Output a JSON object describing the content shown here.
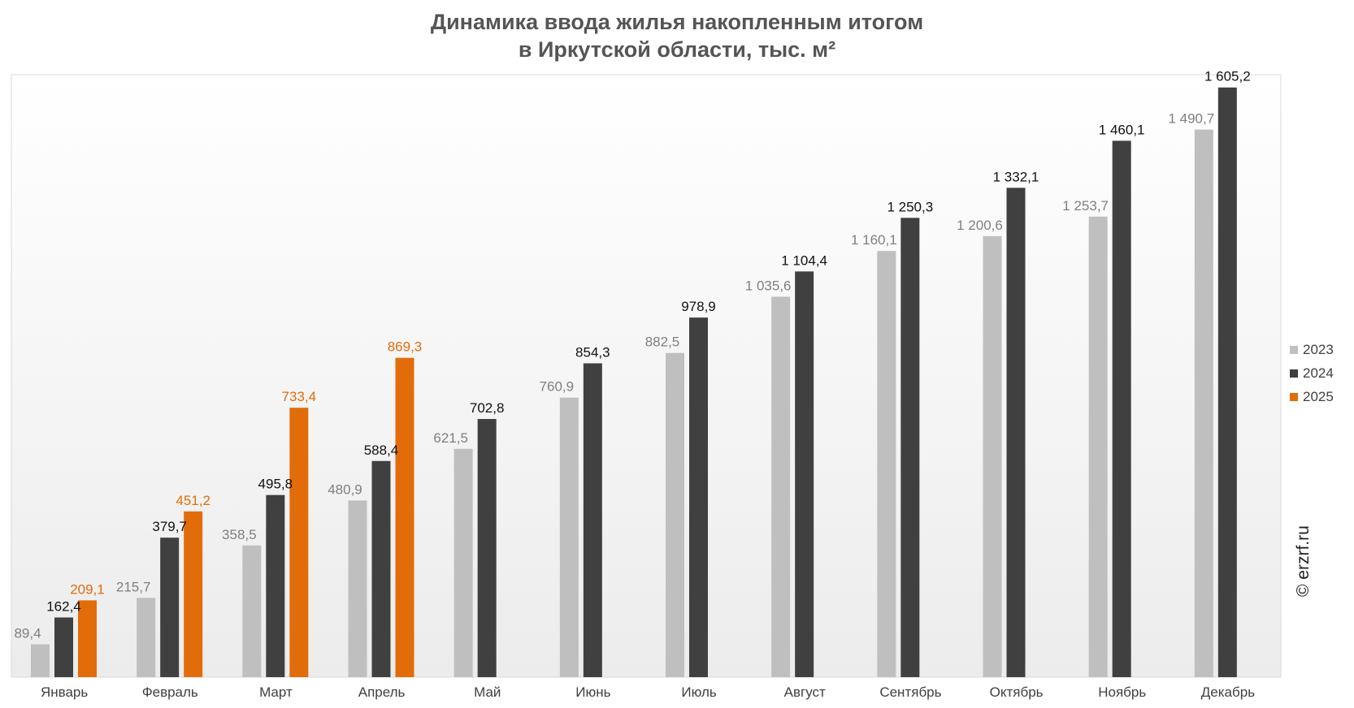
{
  "title_line1": "Динамика ввода жилья накопленным итогом",
  "title_line2": "в Иркутской области, тыс. м²",
  "watermark": "© erzrf.ru",
  "colors": {
    "2023": "#bfbfbf",
    "2024": "#404040",
    "2025": "#e36c0a"
  },
  "chart_data": {
    "type": "bar",
    "title": "Динамика ввода жилья накопленным итогом в Иркутской области, тыс. м²",
    "categories": [
      "Январь",
      "Февраль",
      "Март",
      "Апрель",
      "Май",
      "Июнь",
      "Июль",
      "Август",
      "Сентябрь",
      "Октябрь",
      "Ноябрь",
      "Декабрь"
    ],
    "series": [
      {
        "name": "2023",
        "values": [
          89.4,
          215.7,
          358.5,
          480.9,
          621.5,
          760.9,
          882.5,
          1035.6,
          1160.1,
          1200.6,
          1253.7,
          1490.7
        ],
        "labels": [
          "89,4",
          "215,7",
          "358,5",
          "480,9",
          "621,5",
          "760,9",
          "882,5",
          "1 035,6",
          "1 160,1",
          "1 200,6",
          "1 253,7",
          "1 490,7"
        ]
      },
      {
        "name": "2024",
        "values": [
          162.4,
          379.7,
          495.8,
          588.4,
          702.8,
          854.3,
          978.9,
          1104.4,
          1250.3,
          1332.1,
          1460.1,
          1605.2
        ],
        "labels": [
          "162,4",
          "379,7",
          "495,8",
          "588,4",
          "702,8",
          "854,3",
          "978,9",
          "1 104,4",
          "1 250,3",
          "1 332,1",
          "1 460,1",
          "1 605,2"
        ]
      },
      {
        "name": "2025",
        "values": [
          209.1,
          451.2,
          733.4,
          869.3,
          null,
          null,
          null,
          null,
          null,
          null,
          null,
          null
        ],
        "labels": [
          "209,1",
          "451,2",
          "733,4",
          "869,3",
          null,
          null,
          null,
          null,
          null,
          null,
          null,
          null
        ]
      }
    ],
    "ylim": [
      0,
      1640
    ],
    "grid": false,
    "legend": "right"
  }
}
